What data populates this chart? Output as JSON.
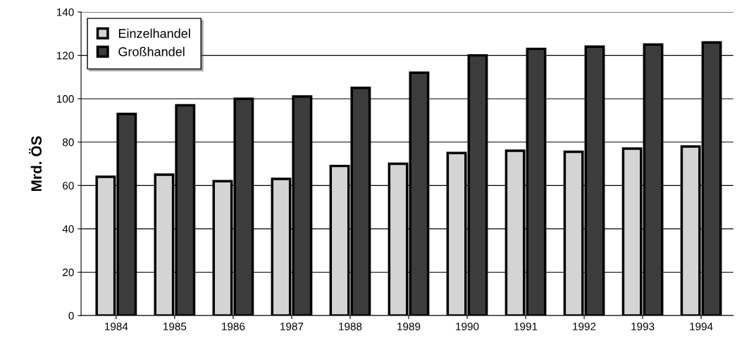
{
  "chart_data": {
    "type": "bar",
    "ylabel": "Mrd. ÖS",
    "categories": [
      "1984",
      "1985",
      "1986",
      "1987",
      "1988",
      "1989",
      "1990",
      "1991",
      "1992",
      "1993",
      "1994"
    ],
    "series": [
      {
        "name": "Einzelhandel",
        "color": "#d4d4d4",
        "values": [
          64,
          65,
          62,
          63,
          69,
          70,
          75,
          76,
          75.5,
          77,
          78
        ]
      },
      {
        "name": "Großhandel",
        "color": "#3c3c3c",
        "values": [
          93,
          97,
          100,
          101,
          105,
          112,
          120,
          123,
          124,
          125,
          126
        ]
      }
    ],
    "ylim": [
      0,
      140
    ],
    "yticks": [
      0,
      20,
      40,
      60,
      80,
      100,
      120,
      140
    ],
    "grid": "y",
    "legend": "top left"
  }
}
